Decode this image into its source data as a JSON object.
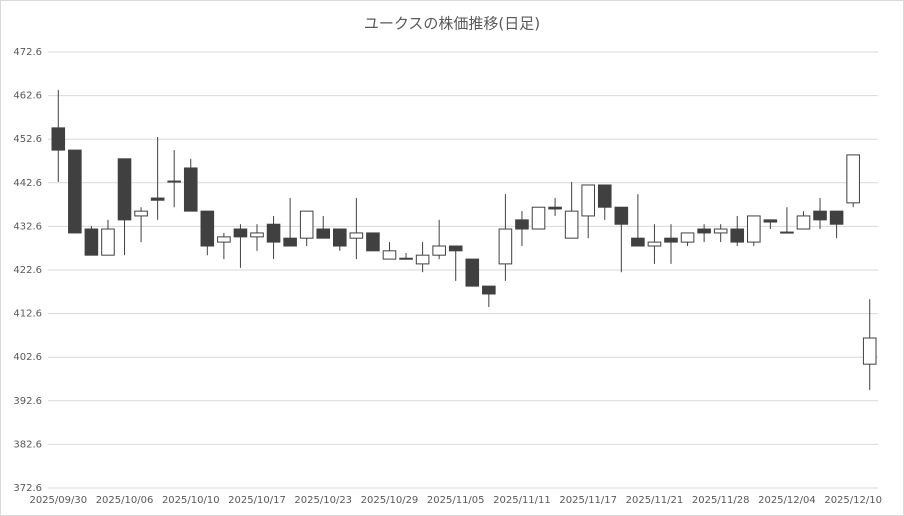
{
  "chart_data": {
    "type": "candlestick",
    "title": "ユークスの株価推移(日足)",
    "categories": [
      "2025/09/30",
      null,
      null,
      null,
      "2025/10/06",
      null,
      null,
      null,
      "2025/10/10",
      null,
      null,
      null,
      "2025/10/17",
      null,
      null,
      null,
      "2025/10/23",
      null,
      null,
      null,
      "2025/10/29",
      null,
      null,
      null,
      "2025/11/05",
      null,
      null,
      null,
      "2025/11/11",
      null,
      null,
      null,
      "2025/11/17",
      null,
      null,
      null,
      "2025/11/21",
      null,
      null,
      null,
      "2025/11/28",
      null,
      null,
      null,
      "2025/12/04",
      null,
      null,
      null,
      "2025/12/10",
      null
    ],
    "open": [
      455.2,
      450.1,
      432.0,
      426.0,
      448.1,
      435.0,
      439.1,
      443.0,
      446.0,
      436.1,
      429.0,
      432.0,
      430.2,
      433.1,
      429.9,
      429.9,
      432.0,
      432.0,
      429.9,
      431.1,
      425.1,
      425.3,
      424.0,
      426.0,
      428.1,
      425.1,
      418.9,
      424.0,
      434.1,
      432.0,
      437.0,
      429.9,
      435.0,
      442.1,
      437.0,
      429.9,
      428.1,
      429.9,
      429.0,
      432.0,
      431.1,
      432.0,
      429.0,
      434.1,
      431.3,
      432.0,
      436.1,
      436.1,
      438.0,
      401.0
    ],
    "high": [
      463.9,
      450.1,
      432.7,
      434.1,
      448.1,
      437.0,
      453.1,
      450.1,
      448.1,
      436.1,
      431.1,
      433.1,
      433.1,
      435.0,
      439.1,
      436.1,
      435.0,
      432.0,
      439.1,
      431.1,
      429.0,
      426.5,
      429.0,
      434.1,
      428.1,
      425.1,
      418.9,
      440.0,
      436.1,
      437.0,
      439.1,
      442.8,
      442.1,
      442.1,
      437.0,
      440.0,
      433.1,
      433.1,
      431.1,
      433.1,
      433.1,
      435.0,
      435.0,
      434.1,
      437.0,
      436.1,
      439.1,
      436.1,
      449.0,
      415.9
    ],
    "low": [
      442.8,
      431.1,
      426.0,
      426.0,
      426.0,
      429.0,
      434.1,
      437.0,
      436.1,
      426.0,
      425.1,
      423.1,
      427.0,
      425.1,
      428.1,
      428.1,
      429.9,
      427.0,
      425.1,
      427.0,
      425.1,
      425.1,
      422.1,
      425.1,
      420.1,
      418.9,
      414.1,
      420.1,
      428.1,
      432.0,
      435.0,
      429.9,
      429.9,
      434.1,
      422.1,
      428.1,
      424.0,
      424.0,
      428.1,
      429.0,
      429.0,
      428.1,
      428.1,
      432.0,
      431.1,
      432.0,
      432.0,
      429.9,
      437.0,
      395.1
    ],
    "close": [
      450.1,
      431.1,
      426.0,
      432.0,
      434.1,
      436.1,
      438.6,
      442.8,
      436.1,
      428.1,
      430.2,
      430.2,
      431.1,
      429.0,
      428.1,
      436.1,
      429.9,
      428.1,
      431.1,
      427.0,
      427.0,
      425.1,
      426.0,
      428.1,
      427.0,
      418.9,
      417.1,
      432.0,
      432.0,
      437.0,
      436.6,
      436.1,
      442.1,
      437.0,
      433.1,
      428.1,
      429.0,
      429.0,
      431.1,
      431.1,
      432.0,
      429.0,
      435.0,
      433.6,
      431.1,
      435.0,
      434.1,
      433.1,
      449.0,
      407.0
    ],
    "up_color": "#ffffff",
    "down_color": "#404040",
    "ylim": [
      372.6,
      472.6
    ],
    "yticks": [
      372.6,
      382.6,
      392.6,
      402.6,
      412.6,
      422.6,
      432.6,
      442.6,
      452.6,
      462.6,
      472.6
    ],
    "grid": true
  }
}
